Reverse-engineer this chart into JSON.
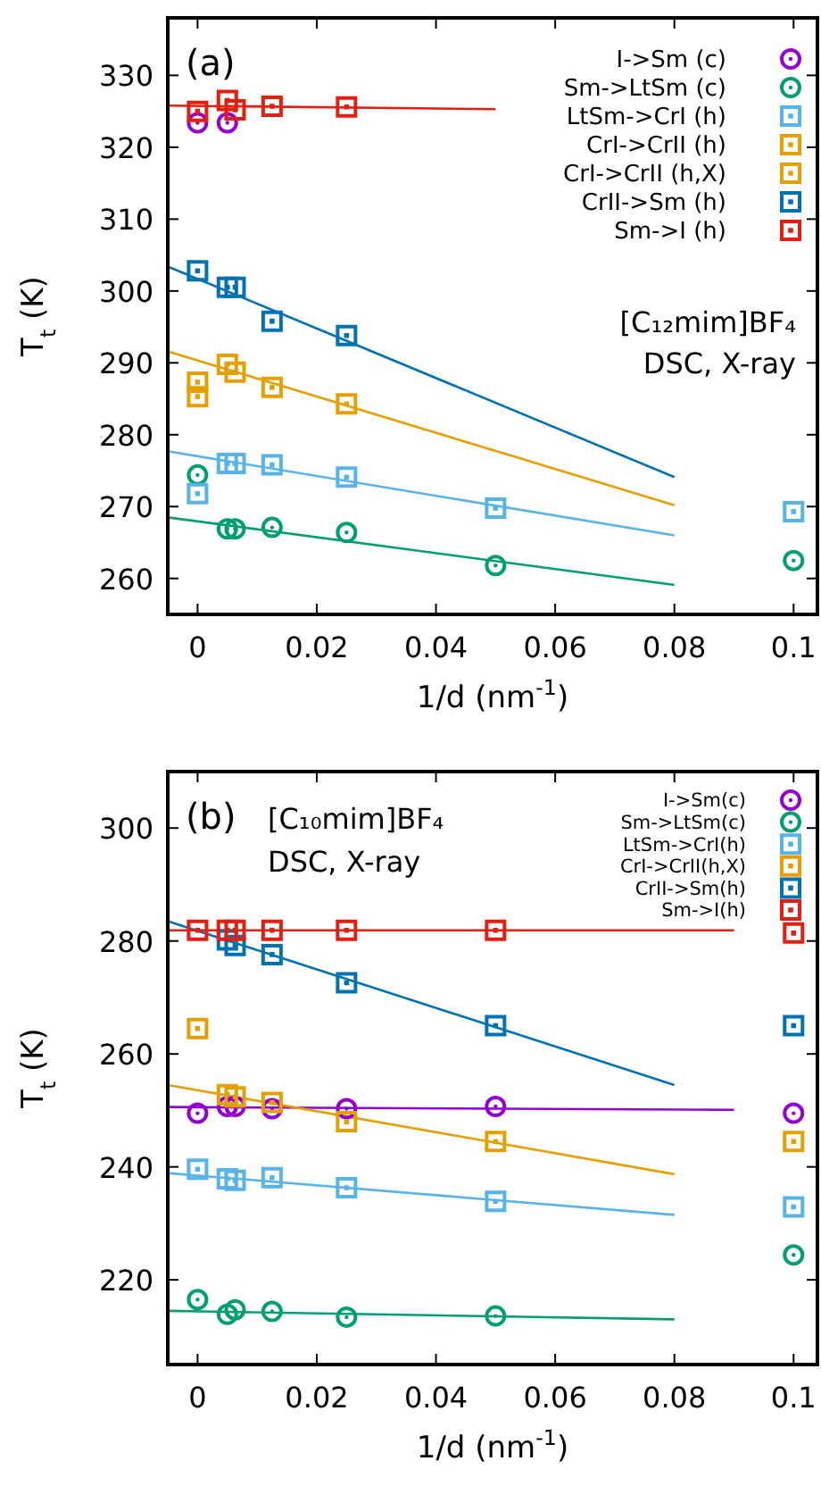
{
  "chart_data": [
    {
      "type": "scatter",
      "title": "(a)",
      "xlabel": "1/d (nm$^{-1}$)",
      "ylabel": "T$_{t}$ (K)",
      "annotations": [
        "[C₁₂mim]BF₄",
        "DSC, X-ray"
      ],
      "legend": "top right",
      "xlim": [
        -0.005,
        0.104
      ],
      "xticks": [
        0,
        0.02,
        0.04,
        0.06,
        0.08,
        0.1
      ],
      "ylim": [
        255,
        338
      ],
      "yticks": [
        260,
        270,
        280,
        290,
        300,
        310,
        320,
        330
      ],
      "series": [
        {
          "name": "I->Sm (c)",
          "type": "scatter",
          "marker": "circle",
          "color": "#9400d3",
          "x": [
            0,
            0.005
          ],
          "values": [
            323.4,
            323.4
          ]
        },
        {
          "name": "Sm->LtSm (c)",
          "type": "scatter",
          "marker": "circle",
          "color": "#009e73",
          "x": [
            0,
            0.005,
            0.0063,
            0.0125,
            0.025,
            0.05,
            0.1
          ],
          "values": [
            274.4,
            266.9,
            266.9,
            267.1,
            266.4,
            261.8,
            262.5
          ]
        },
        {
          "name": "LtSm->CrI (h)",
          "type": "scatter",
          "marker": "square",
          "color": "#56b4e9",
          "x": [
            0,
            0.005,
            0.0063,
            0.0125,
            0.025,
            0.05,
            0.1
          ],
          "values": [
            271.8,
            276.0,
            276.0,
            275.8,
            274.1,
            269.8,
            269.3
          ]
        },
        {
          "name": "CrI->CrII (h)",
          "type": "scatter",
          "marker": "square",
          "color": "#e69f00",
          "x": [
            0
          ],
          "values": [
            285.3
          ]
        },
        {
          "name": "CrI->CrII (h,X)",
          "type": "scatter",
          "marker": "square",
          "color": "#e69f00",
          "x": [
            0,
            0.005,
            0.0063,
            0.0125,
            0.025
          ],
          "values": [
            287.3,
            289.8,
            288.7,
            286.6,
            284.3
          ]
        },
        {
          "name": "CrII->Sm (h)",
          "type": "scatter",
          "marker": "square",
          "color": "#0072b2",
          "x": [
            0,
            0.005,
            0.0063,
            0.0125,
            0.025
          ],
          "values": [
            302.8,
            300.5,
            300.5,
            295.8,
            293.8
          ]
        },
        {
          "name": "Sm->I (h)",
          "type": "scatter",
          "marker": "square",
          "color": "#e51e10",
          "x": [
            0,
            0.005,
            0.0063,
            0.0125,
            0.025
          ],
          "values": [
            325.0,
            326.5,
            325.2,
            325.7,
            325.6
          ]
        },
        {
          "type": "line",
          "color": "#009e73",
          "x": [
            -0.005,
            0.08
          ],
          "values": [
            268.5,
            259.1
          ]
        },
        {
          "type": "line",
          "color": "#56b4e9",
          "x": [
            -0.005,
            0.08
          ],
          "values": [
            277.7,
            266.0
          ]
        },
        {
          "type": "line",
          "color": "#e69f00",
          "x": [
            -0.005,
            0.08
          ],
          "values": [
            291.6,
            270.2
          ]
        },
        {
          "type": "line",
          "color": "#0072b2",
          "x": [
            -0.005,
            0.08
          ],
          "values": [
            303.4,
            274.1
          ]
        },
        {
          "type": "line",
          "color": "#e51e10",
          "x": [
            -0.005,
            0.05
          ],
          "values": [
            325.8,
            325.3
          ]
        }
      ]
    },
    {
      "type": "scatter",
      "title": "(b)",
      "xlabel": "1/d (nm$^{-1}$)",
      "ylabel": "T$_{t}$ (K)",
      "annotations": [
        "[C₁₀mim]BF₄",
        "DSC, X-ray"
      ],
      "legend": "top right",
      "xlim": [
        -0.005,
        0.104
      ],
      "xticks": [
        0,
        0.02,
        0.04,
        0.06,
        0.08,
        0.1
      ],
      "ylim": [
        205,
        310
      ],
      "yticks": [
        220,
        240,
        260,
        280,
        300
      ],
      "series": [
        {
          "name": "I->Sm(c)",
          "type": "scatter",
          "marker": "circle",
          "color": "#9400d3",
          "x": [
            0,
            0.005,
            0.0063,
            0.0125,
            0.025,
            0.05,
            0.1
          ],
          "values": [
            249.5,
            250.7,
            250.7,
            250.3,
            250.3,
            250.7,
            249.5
          ]
        },
        {
          "name": "Sm->LtSm(c)",
          "type": "scatter",
          "marker": "circle",
          "color": "#009e73",
          "x": [
            0,
            0.005,
            0.0063,
            0.0125,
            0.025,
            0.05,
            0.1
          ],
          "values": [
            216.5,
            213.9,
            214.7,
            214.4,
            213.4,
            213.6,
            224.4
          ]
        },
        {
          "name": "LtSm->CrI(h)",
          "type": "scatter",
          "marker": "square",
          "color": "#56b4e9",
          "x": [
            0,
            0.005,
            0.0063,
            0.0125,
            0.025,
            0.05,
            0.1
          ],
          "values": [
            239.6,
            237.9,
            237.6,
            238.1,
            236.3,
            233.9,
            232.9
          ]
        },
        {
          "name": "CrI->CrII(h,X)",
          "type": "scatter",
          "marker": "square",
          "color": "#e69f00",
          "x": [
            0,
            0.005,
            0.0063,
            0.0125,
            0.025,
            0.05,
            0.1
          ],
          "values": [
            264.5,
            252.8,
            252.4,
            251.4,
            248.0,
            244.5,
            244.5
          ]
        },
        {
          "name": "CrII->Sm(h)",
          "type": "scatter",
          "marker": "square",
          "color": "#0072b2",
          "x": [
            0.005,
            0.0063,
            0.0125,
            0.025,
            0.05,
            0.1
          ],
          "values": [
            280.2,
            279.2,
            277.6,
            272.6,
            265.0,
            265.0
          ]
        },
        {
          "name": "Sm->I(h)",
          "type": "scatter",
          "marker": "square",
          "color": "#e51e10",
          "x": [
            0,
            0.005,
            0.0063,
            0.0125,
            0.025,
            0.05,
            0.1
          ],
          "values": [
            281.9,
            281.9,
            281.9,
            281.9,
            281.9,
            281.9,
            281.4
          ]
        },
        {
          "type": "line",
          "color": "#9400d3",
          "x": [
            -0.005,
            0.09
          ],
          "values": [
            250.6,
            250.1
          ]
        },
        {
          "type": "line",
          "color": "#009e73",
          "x": [
            -0.005,
            0.08
          ],
          "values": [
            214.5,
            213.0
          ]
        },
        {
          "type": "line",
          "color": "#56b4e9",
          "x": [
            -0.005,
            0.08
          ],
          "values": [
            238.9,
            231.5
          ]
        },
        {
          "type": "line",
          "color": "#e69f00",
          "x": [
            -0.005,
            0.08
          ],
          "values": [
            254.5,
            238.7
          ]
        },
        {
          "type": "line",
          "color": "#0072b2",
          "x": [
            -0.005,
            0.08
          ],
          "values": [
            283.5,
            254.5
          ]
        },
        {
          "type": "line",
          "color": "#e51e10",
          "x": [
            -0.005,
            0.09
          ],
          "values": [
            281.9,
            281.9
          ]
        }
      ]
    }
  ]
}
